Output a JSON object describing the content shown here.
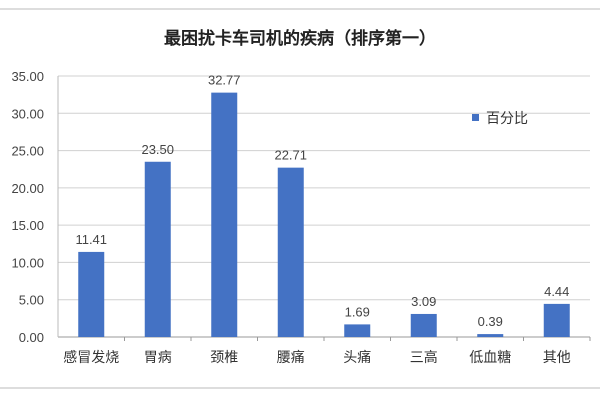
{
  "chart_data": {
    "type": "bar",
    "title": "最困扰卡车司机的疾病（排序第一）",
    "categories": [
      "感冒发烧",
      "胃病",
      "颈椎",
      "腰痛",
      "头痛",
      "三高",
      "低血糖",
      "其他"
    ],
    "series": [
      {
        "name": "百分比",
        "values": [
          11.41,
          23.5,
          32.77,
          22.71,
          1.69,
          3.09,
          0.39,
          4.44
        ],
        "color": "#4472C4"
      }
    ],
    "data_labels": [
      "11.41",
      "23.50",
      "32.77",
      "22.71",
      "1.69",
      "3.09",
      "0.39",
      "4.44"
    ],
    "yticks": [
      "0.00",
      "5.00",
      "10.00",
      "15.00",
      "20.00",
      "25.00",
      "30.00",
      "35.00"
    ],
    "ylim": [
      0,
      35
    ],
    "grid": true,
    "legend_position": "right",
    "xlabel": "",
    "ylabel": ""
  }
}
